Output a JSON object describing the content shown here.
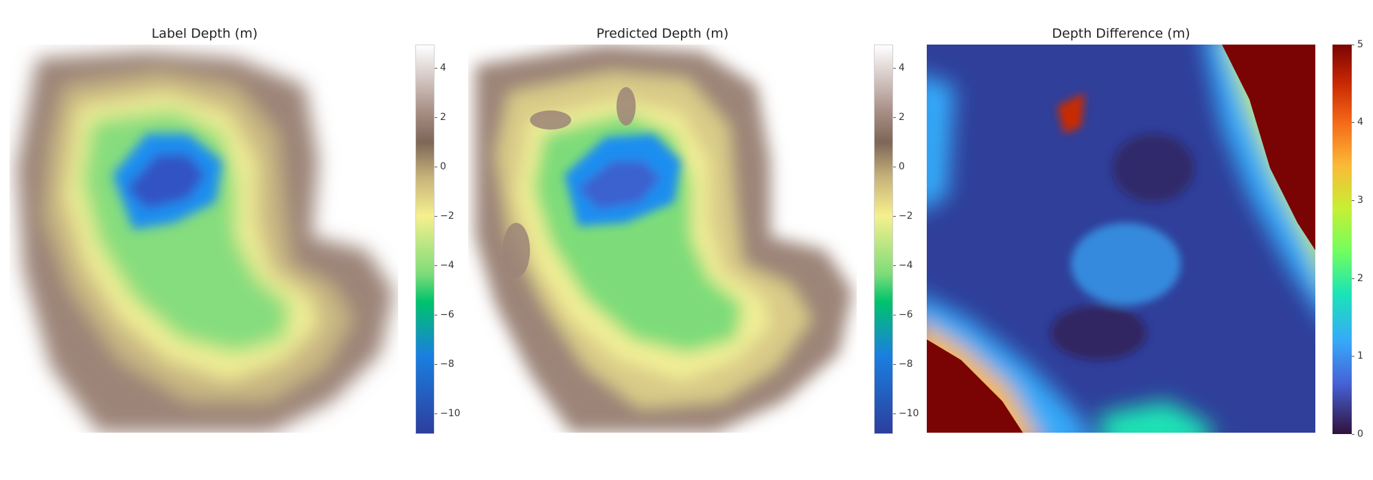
{
  "chart_data": [
    {
      "type": "heatmap",
      "title": "Label Depth (m)",
      "colormap": "terrain",
      "colorbar": {
        "range": [
          -11,
          5
        ],
        "ticks": [
          4,
          2,
          0,
          -2,
          -4,
          -6,
          -8,
          -10
        ],
        "tick_labels": [
          "4",
          "2",
          "0",
          "−2",
          "−4",
          "−6",
          "−8",
          "−10"
        ]
      }
    },
    {
      "type": "heatmap",
      "title": "Predicted Depth (m)",
      "colormap": "terrain",
      "colorbar": {
        "range": [
          -11,
          5
        ],
        "ticks": [
          4,
          2,
          0,
          -2,
          -4,
          -6,
          -8,
          -10
        ],
        "tick_labels": [
          "4",
          "2",
          "0",
          "−2",
          "−4",
          "−6",
          "−8",
          "−10"
        ]
      }
    },
    {
      "type": "heatmap",
      "title": "Depth Difference (m)",
      "colormap": "turbo",
      "colorbar": {
        "range": [
          0,
          5
        ],
        "ticks": [
          5,
          4,
          3,
          2,
          1,
          0
        ],
        "tick_labels": [
          "5",
          "4",
          "3",
          "2",
          "1",
          "0"
        ]
      }
    }
  ],
  "colors": {
    "terrain": [
      "#2d3e9e",
      "#1a7fe0",
      "#00c36b",
      "#7ddc79",
      "#f6f08e",
      "#c7b27a",
      "#7d6657",
      "#a88f86",
      "#ffffff"
    ],
    "turbo": [
      "#30123b",
      "#4662d7",
      "#36aaf9",
      "#1ae4b6",
      "#72fe5e",
      "#c7ef34",
      "#fbb938",
      "#f56918",
      "#c92903",
      "#7a0403"
    ]
  }
}
